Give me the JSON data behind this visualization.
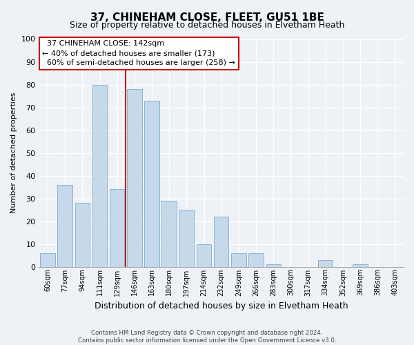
{
  "title": "37, CHINEHAM CLOSE, FLEET, GU51 1BE",
  "subtitle": "Size of property relative to detached houses in Elvetham Heath",
  "xlabel": "Distribution of detached houses by size in Elvetham Heath",
  "ylabel": "Number of detached properties",
  "bar_labels": [
    "60sqm",
    "77sqm",
    "94sqm",
    "111sqm",
    "129sqm",
    "146sqm",
    "163sqm",
    "180sqm",
    "197sqm",
    "214sqm",
    "232sqm",
    "249sqm",
    "266sqm",
    "283sqm",
    "300sqm",
    "317sqm",
    "334sqm",
    "352sqm",
    "369sqm",
    "386sqm",
    "403sqm"
  ],
  "bar_values": [
    6,
    36,
    28,
    80,
    34,
    78,
    73,
    29,
    25,
    10,
    22,
    6,
    6,
    1,
    0,
    0,
    3,
    0,
    1,
    0,
    0
  ],
  "bar_color": "#c5d9ea",
  "bar_edge_color": "#8ab4d0",
  "ref_line_color": "#cc0000",
  "annotation_box_edge": "#cc0000",
  "ylim": [
    0,
    100
  ],
  "yticks": [
    0,
    10,
    20,
    30,
    40,
    50,
    60,
    70,
    80,
    90,
    100
  ],
  "ref_line_index": 5,
  "reference_line_label": "37 CHINEHAM CLOSE: 142sqm",
  "smaller_pct": "40%",
  "smaller_count": 173,
  "larger_pct": "60%",
  "larger_count": 258,
  "footer_line1": "Contains HM Land Registry data © Crown copyright and database right 2024.",
  "footer_line2": "Contains public sector information licensed under the Open Government Licence v3.0.",
  "bg_color": "#eef2f7",
  "plot_bg_color": "#eef2f7",
  "grid_color": "#ffffff"
}
